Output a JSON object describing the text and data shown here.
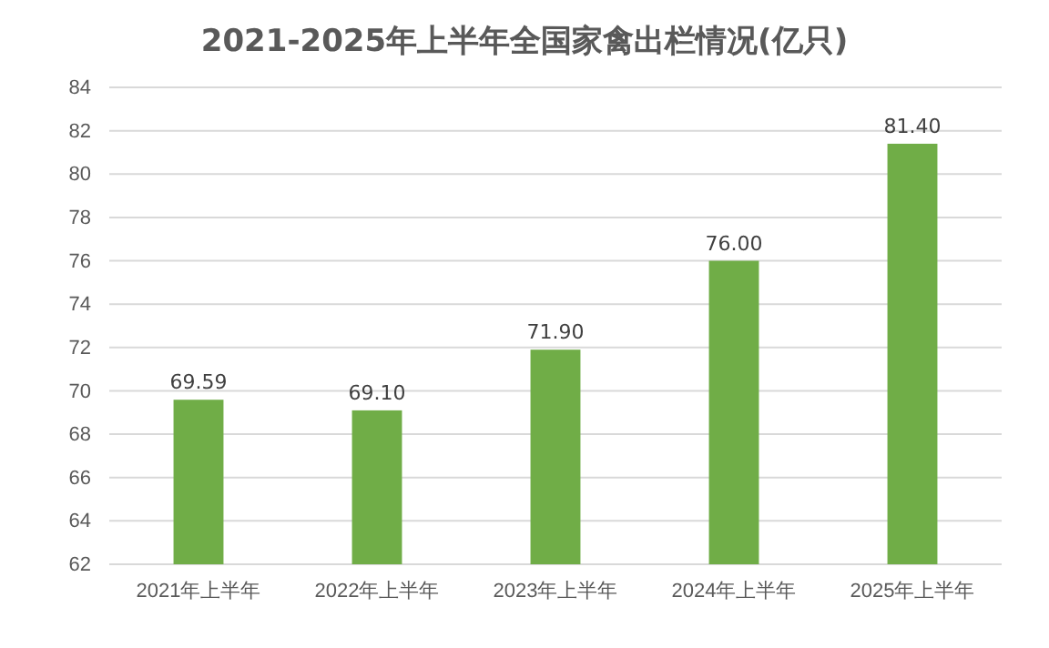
{
  "chart_data": {
    "type": "bar",
    "title": "2021-2025年上半年全国家禽出栏情况(亿只)",
    "categories": [
      "2021年上半年",
      "2022年上半年",
      "2023年上半年",
      "2024年上半年",
      "2025年上半年"
    ],
    "values": [
      69.59,
      69.1,
      71.9,
      76.0,
      81.4
    ],
    "value_labels": [
      "69.59",
      "69.10",
      "71.90",
      "76.00",
      "81.40"
    ],
    "color": "#70ad47",
    "ylim": [
      62,
      84
    ],
    "yticks": [
      62,
      64,
      66,
      68,
      70,
      72,
      74,
      76,
      78,
      80,
      82,
      84
    ],
    "grid": "y"
  }
}
